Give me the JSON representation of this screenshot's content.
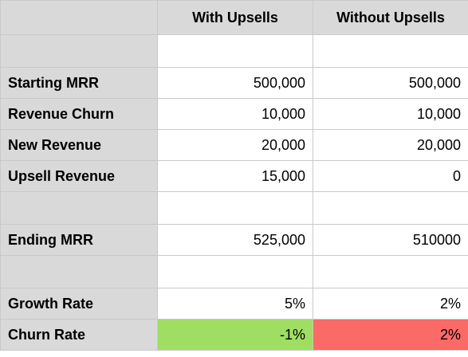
{
  "columns": [
    "",
    "With Upsells",
    "Without Upsells"
  ],
  "rows": [
    {
      "label": "",
      "with_upsells": "",
      "without_upsells": ""
    },
    {
      "label": "Starting MRR",
      "with_upsells": "500,000",
      "without_upsells": "500,000"
    },
    {
      "label": "Revenue Churn",
      "with_upsells": "10,000",
      "without_upsells": "10,000"
    },
    {
      "label": "New Revenue",
      "with_upsells": "20,000",
      "without_upsells": "20,000"
    },
    {
      "label": "Upsell Revenue",
      "with_upsells": "15,000",
      "without_upsells": "0"
    },
    {
      "label": "",
      "with_upsells": "",
      "without_upsells": ""
    },
    {
      "label": "Ending MRR",
      "with_upsells": "525,000",
      "without_upsells": "510000"
    },
    {
      "label": "",
      "with_upsells": "",
      "without_upsells": ""
    },
    {
      "label": "Growth Rate",
      "with_upsells": "5%",
      "without_upsells": "2%"
    },
    {
      "label": "Churn Rate",
      "with_upsells": "-1%",
      "without_upsells": "2%"
    }
  ],
  "colors": {
    "header_bg": "#d9d9d9",
    "grid_line": "#c9c9c9",
    "good_fill": "#9fde63",
    "bad_fill": "#fa6a66"
  }
}
